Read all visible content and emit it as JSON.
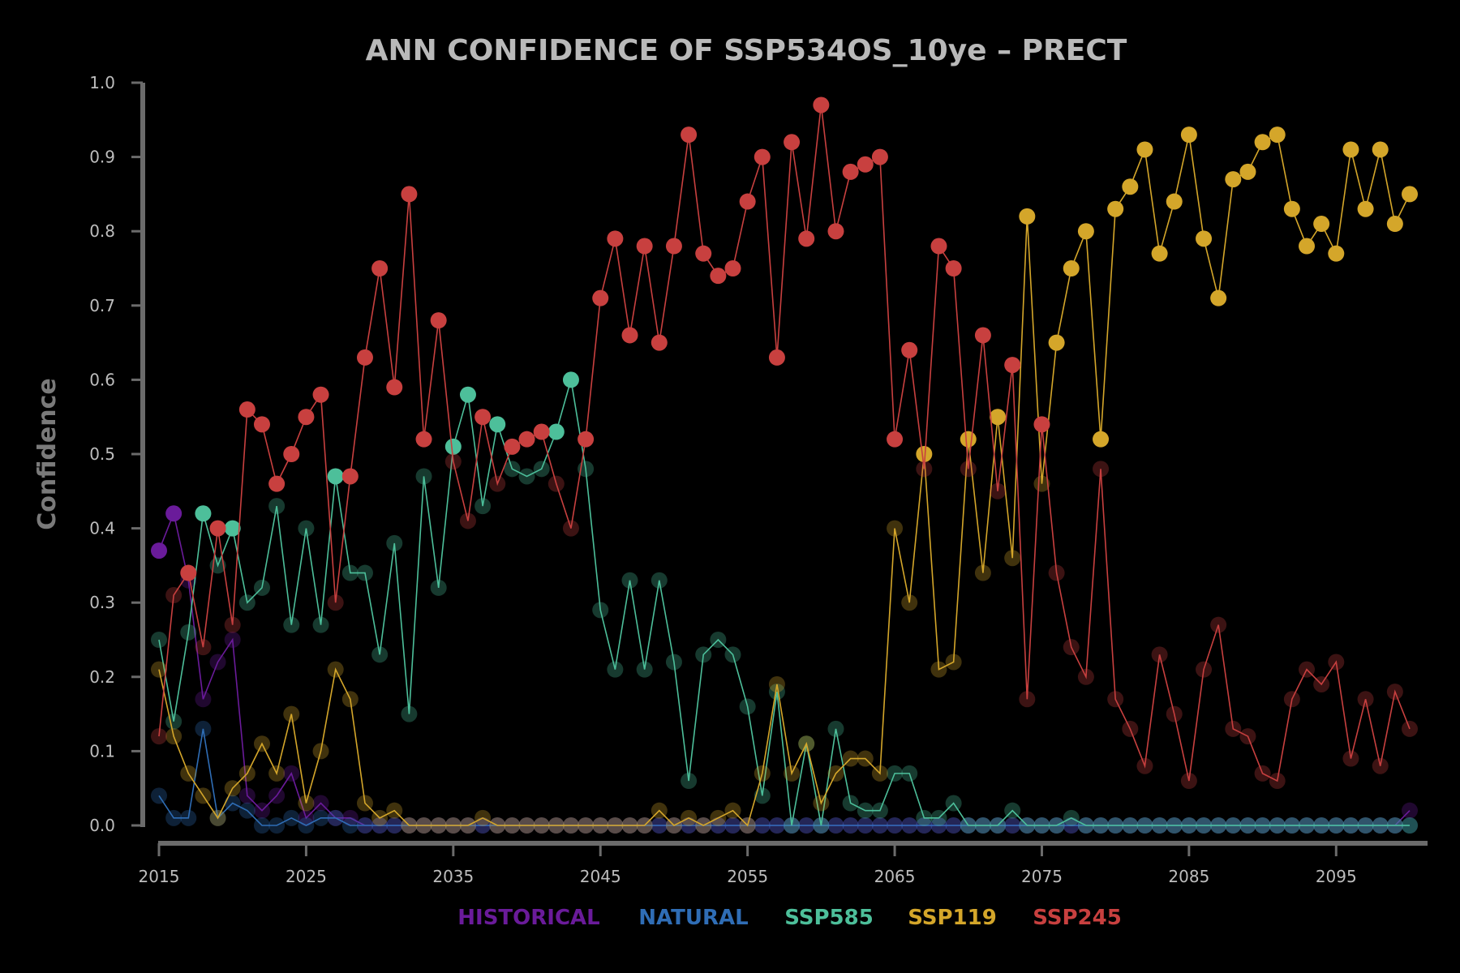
{
  "chart_data": {
    "type": "line",
    "title": "ANN CONFIDENCE OF SSP534OS_10ye – PRECT",
    "xlabel": "",
    "ylabel": "Confidence",
    "xlim": [
      2015,
      2100
    ],
    "ylim": [
      0,
      1
    ],
    "x_ticks": [
      2015,
      2025,
      2035,
      2045,
      2055,
      2065,
      2075,
      2085,
      2095
    ],
    "y_ticks": [
      "0.0",
      "0.1",
      "0.2",
      "0.3",
      "0.4",
      "0.5",
      "0.6",
      "0.7",
      "0.8",
      "0.9",
      "1.0"
    ],
    "legend_position": "bottom-center",
    "grid": false,
    "x_start": 2015,
    "series": [
      {
        "name": "HISTORICAL",
        "color": "#6a1b9a",
        "values": [
          0.37,
          0.42,
          0.33,
          0.17,
          0.22,
          0.25,
          0.04,
          0.02,
          0.04,
          0.07,
          0.01,
          0.03,
          0.01,
          0.01,
          0.0,
          0.0,
          0.0,
          0.0,
          0.0,
          0.0,
          0.0,
          0.0,
          0.0,
          0.0,
          0.0,
          0.0,
          0.0,
          0.0,
          0.0,
          0.0,
          0.0,
          0.0,
          0.0,
          0.0,
          0.0,
          0.0,
          0.0,
          0.0,
          0.0,
          0.0,
          0.0,
          0.0,
          0.0,
          0.0,
          0.0,
          0.0,
          0.0,
          0.0,
          0.0,
          0.0,
          0.0,
          0.0,
          0.0,
          0.0,
          0.0,
          0.0,
          0.0,
          0.0,
          0.0,
          0.0,
          0.0,
          0.0,
          0.0,
          0.0,
          0.0,
          0.0,
          0.0,
          0.0,
          0.0,
          0.0,
          0.0,
          0.0,
          0.0,
          0.0,
          0.0,
          0.0,
          0.0,
          0.0,
          0.0,
          0.0,
          0.0,
          0.0,
          0.0,
          0.0,
          0.0,
          0.02
        ]
      },
      {
        "name": "NATURAL",
        "color": "#2f6db5",
        "values": [
          0.04,
          0.01,
          0.01,
          0.13,
          0.01,
          0.03,
          0.02,
          0.0,
          0.0,
          0.01,
          0.0,
          0.01,
          0.01,
          0.0,
          0.0,
          0.0,
          0.0,
          0.0,
          0.0,
          0.0,
          0.0,
          0.0,
          0.0,
          0.0,
          0.0,
          0.0,
          0.0,
          0.0,
          0.0,
          0.0,
          0.0,
          0.0,
          0.0,
          0.0,
          0.0,
          0.0,
          0.0,
          0.0,
          0.0,
          0.0,
          0.0,
          0.0,
          0.0,
          0.0,
          0.0,
          0.0,
          0.0,
          0.0,
          0.0,
          0.0,
          0.0,
          0.0,
          0.0,
          0.0,
          0.0,
          0.0,
          0.0,
          0.0,
          0.0,
          0.0,
          0.0,
          0.0,
          0.0,
          0.0,
          0.0,
          0.0,
          0.0,
          0.0,
          0.0,
          0.0,
          0.0,
          0.0,
          0.0,
          0.0,
          0.0,
          0.0,
          0.0,
          0.0,
          0.0,
          0.0,
          0.0,
          0.0,
          0.0,
          0.0,
          0.0,
          0.0
        ]
      },
      {
        "name": "SSP585",
        "color": "#4dbf9a",
        "values": [
          0.25,
          0.14,
          0.26,
          0.42,
          0.35,
          0.4,
          0.3,
          0.32,
          0.43,
          0.27,
          0.4,
          0.27,
          0.47,
          0.34,
          0.34,
          0.23,
          0.38,
          0.15,
          0.47,
          0.32,
          0.51,
          0.58,
          0.43,
          0.54,
          0.48,
          0.47,
          0.48,
          0.53,
          0.6,
          0.48,
          0.29,
          0.21,
          0.33,
          0.21,
          0.33,
          0.22,
          0.06,
          0.23,
          0.25,
          0.23,
          0.16,
          0.04,
          0.18,
          0.0,
          0.11,
          0.0,
          0.13,
          0.03,
          0.02,
          0.02,
          0.07,
          0.07,
          0.01,
          0.01,
          0.03,
          0.0,
          0.0,
          0.0,
          0.02,
          0.0,
          0.0,
          0.0,
          0.01,
          0.0,
          0.0,
          0.0,
          0.0,
          0.0,
          0.0,
          0.0,
          0.0,
          0.0,
          0.0,
          0.0,
          0.0,
          0.0,
          0.0,
          0.0,
          0.0,
          0.0,
          0.0,
          0.0,
          0.0,
          0.0,
          0.0,
          0.0
        ]
      },
      {
        "name": "SSP119",
        "color": "#d4a62a",
        "values": [
          0.21,
          0.12,
          0.07,
          0.04,
          0.01,
          0.05,
          0.07,
          0.11,
          0.07,
          0.15,
          0.03,
          0.1,
          0.21,
          0.17,
          0.03,
          0.01,
          0.02,
          0.0,
          0.0,
          0.0,
          0.0,
          0.0,
          0.01,
          0.0,
          0.0,
          0.0,
          0.0,
          0.0,
          0.0,
          0.0,
          0.0,
          0.0,
          0.0,
          0.0,
          0.02,
          0.0,
          0.01,
          0.0,
          0.01,
          0.02,
          0.0,
          0.07,
          0.19,
          0.07,
          0.11,
          0.03,
          0.07,
          0.09,
          0.09,
          0.07,
          0.4,
          0.3,
          0.5,
          0.21,
          0.22,
          0.52,
          0.34,
          0.55,
          0.36,
          0.82,
          0.46,
          0.65,
          0.75,
          0.8,
          0.52,
          0.83,
          0.86,
          0.91,
          0.77,
          0.84,
          0.93,
          0.79,
          0.71,
          0.87,
          0.88,
          0.92,
          0.93,
          0.83,
          0.78,
          0.81,
          0.77,
          0.91,
          0.83,
          0.91,
          0.81,
          0.85
        ]
      },
      {
        "name": "SSP245",
        "color": "#c8403f",
        "values": [
          0.12,
          0.31,
          0.34,
          0.24,
          0.4,
          0.27,
          0.56,
          0.54,
          0.46,
          0.5,
          0.55,
          0.58,
          0.3,
          0.47,
          0.63,
          0.75,
          0.59,
          0.85,
          0.52,
          0.68,
          0.49,
          0.41,
          0.55,
          0.46,
          0.51,
          0.52,
          0.53,
          0.46,
          0.4,
          0.52,
          0.71,
          0.79,
          0.66,
          0.78,
          0.65,
          0.78,
          0.93,
          0.77,
          0.74,
          0.75,
          0.84,
          0.9,
          0.63,
          0.92,
          0.79,
          0.97,
          0.8,
          0.88,
          0.89,
          0.9,
          0.52,
          0.64,
          0.48,
          0.78,
          0.75,
          0.48,
          0.66,
          0.45,
          0.62,
          0.17,
          0.54,
          0.34,
          0.24,
          0.2,
          0.48,
          0.17,
          0.13,
          0.08,
          0.23,
          0.15,
          0.06,
          0.21,
          0.27,
          0.13,
          0.12,
          0.07,
          0.06,
          0.17,
          0.21,
          0.19,
          0.22,
          0.09,
          0.17,
          0.08,
          0.18,
          0.13
        ]
      }
    ]
  }
}
